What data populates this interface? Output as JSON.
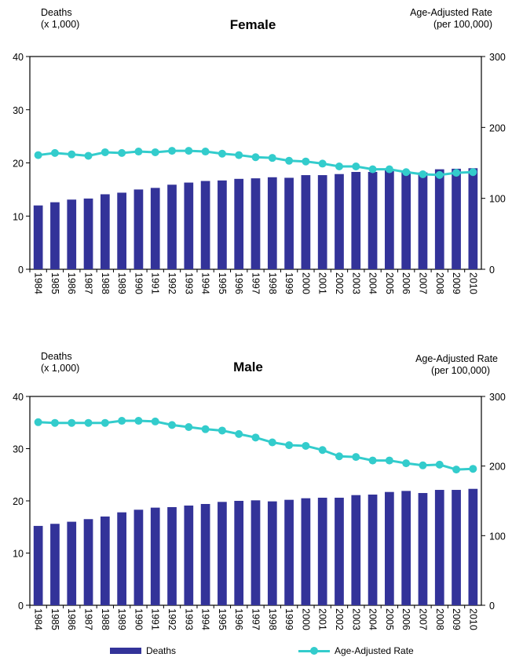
{
  "colors": {
    "bars": "#333399",
    "line": "#33CCCC"
  },
  "legend": {
    "deaths": "Deaths",
    "rate": "Age-Adjusted Rate"
  },
  "chart_data": [
    {
      "type": "bar+line",
      "title": "Female",
      "ylabel_left_line1": "Deaths",
      "ylabel_left_line2": "(x 1,000)",
      "ylabel_right_line1": "Age-Adjusted Rate",
      "ylabel_right_line2": "(per 100,000)",
      "ylim_left": [
        0,
        40
      ],
      "ylim_right": [
        0,
        300
      ],
      "left_ticks": [
        "0",
        "10",
        "20",
        "30",
        "40"
      ],
      "right_ticks": [
        "0",
        "100",
        "200",
        "300"
      ],
      "categories": [
        "1984",
        "1985",
        "1986",
        "1987",
        "1988",
        "1989",
        "1990",
        "1991",
        "1992",
        "1993",
        "1994",
        "1995",
        "1996",
        "1997",
        "1998",
        "1999",
        "2000",
        "2001",
        "2002",
        "2003",
        "2004",
        "2005",
        "2006",
        "2007",
        "2008",
        "2009",
        "2010"
      ],
      "series": [
        {
          "name": "Deaths",
          "axis": "left",
          "values": [
            12.0,
            12.6,
            13.1,
            13.3,
            14.1,
            14.4,
            15.0,
            15.3,
            15.9,
            16.3,
            16.6,
            16.7,
            17.0,
            17.1,
            17.3,
            17.2,
            17.7,
            17.7,
            17.9,
            18.3,
            18.3,
            18.6,
            18.4,
            18.2,
            18.8,
            18.9,
            19.0
          ]
        },
        {
          "name": "Age-Adjusted Rate",
          "axis": "right",
          "values": [
            161,
            164,
            162,
            160,
            165,
            164,
            166,
            165,
            167,
            167,
            166,
            163,
            161,
            158,
            157,
            153,
            152,
            149,
            145,
            145,
            141,
            141,
            137,
            134,
            133,
            136,
            137
          ]
        }
      ]
    },
    {
      "type": "bar+line",
      "title": "Male",
      "ylabel_left_line1": "Deaths",
      "ylabel_left_line2": "(x 1,000)",
      "ylabel_right_line1": "Age-Adjusted Rate",
      "ylabel_right_line2": "(per 100,000)",
      "ylim_left": [
        0,
        40
      ],
      "ylim_right": [
        0,
        300
      ],
      "left_ticks": [
        "0",
        "10",
        "20",
        "30",
        "40"
      ],
      "right_ticks": [
        "0",
        "100",
        "200",
        "300"
      ],
      "categories": [
        "1984",
        "1985",
        "1986",
        "1987",
        "1988",
        "1989",
        "1990",
        "1991",
        "1992",
        "1993",
        "1994",
        "1995",
        "1996",
        "1997",
        "1998",
        "1999",
        "2000",
        "2001",
        "2002",
        "2003",
        "2004",
        "2005",
        "2006",
        "2007",
        "2008",
        "2009",
        "2010"
      ],
      "series": [
        {
          "name": "Deaths",
          "axis": "left",
          "values": [
            15.2,
            15.6,
            16.0,
            16.5,
            17.0,
            17.8,
            18.3,
            18.7,
            18.8,
            19.1,
            19.4,
            19.8,
            20.0,
            20.1,
            19.9,
            20.2,
            20.5,
            20.6,
            20.6,
            21.1,
            21.2,
            21.7,
            21.9,
            21.5,
            22.1,
            22.1,
            22.3
          ]
        },
        {
          "name": "Age-Adjusted Rate",
          "axis": "right",
          "values": [
            263,
            262,
            262,
            262,
            262,
            265,
            265,
            264,
            259,
            256,
            253,
            251,
            246,
            241,
            234,
            230,
            229,
            223,
            214,
            213,
            208,
            208,
            204,
            201,
            202,
            195,
            196
          ]
        }
      ]
    }
  ]
}
